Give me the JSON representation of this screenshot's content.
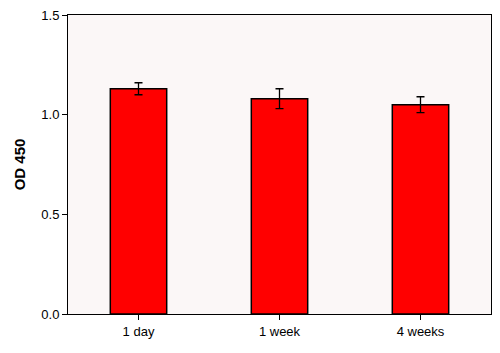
{
  "chart_data": {
    "type": "bar",
    "categories": [
      "1 day",
      "1 week",
      "4 weeks"
    ],
    "values": [
      1.13,
      1.08,
      1.05
    ],
    "errors": [
      0.03,
      0.05,
      0.04
    ],
    "color": "#ff0000",
    "y_label": "OD 450",
    "ylim": [
      0,
      1.5
    ],
    "yticks": [
      {
        "value": 0,
        "label": "0.0"
      },
      {
        "value": 0.5,
        "label": "0.5"
      },
      {
        "value": 1,
        "label": "1.0"
      },
      {
        "value": 1.5,
        "label": "1.5"
      }
    ],
    "grid": false
  }
}
